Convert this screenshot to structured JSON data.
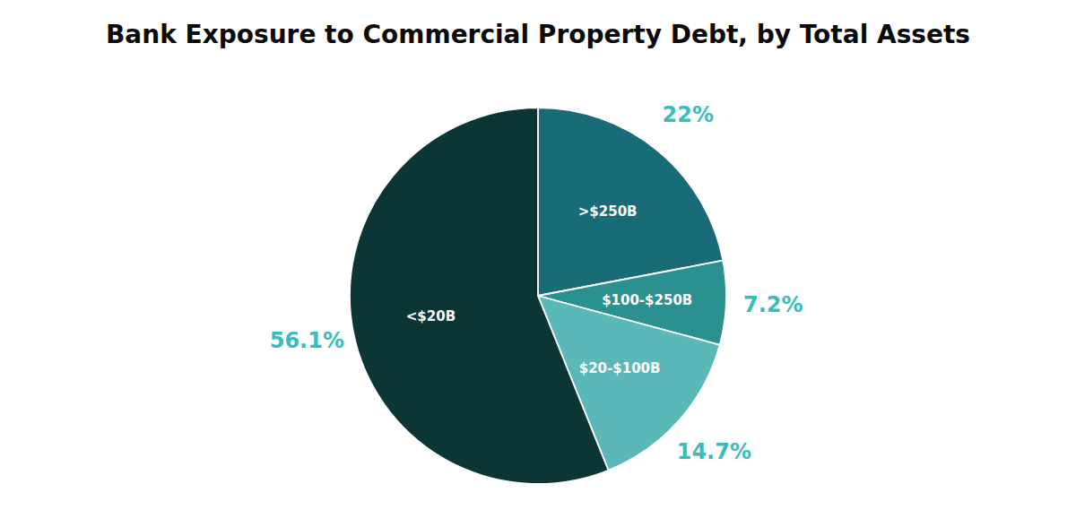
{
  "chart_data": {
    "type": "pie",
    "title": "Bank Exposure to Commercial Property Debt, by Total Assets",
    "categories": [
      ">$250B",
      "$100-$250B",
      "$20-$100B",
      "<$20B"
    ],
    "values": [
      22.0,
      7.2,
      14.7,
      56.1
    ],
    "value_labels": [
      "22%",
      "7.2%",
      "14.7%",
      "56.1%"
    ],
    "colors": [
      "#1a6b78",
      "#2a9090",
      "#5ab8b8",
      "#0c3535"
    ],
    "data_labels": true
  }
}
